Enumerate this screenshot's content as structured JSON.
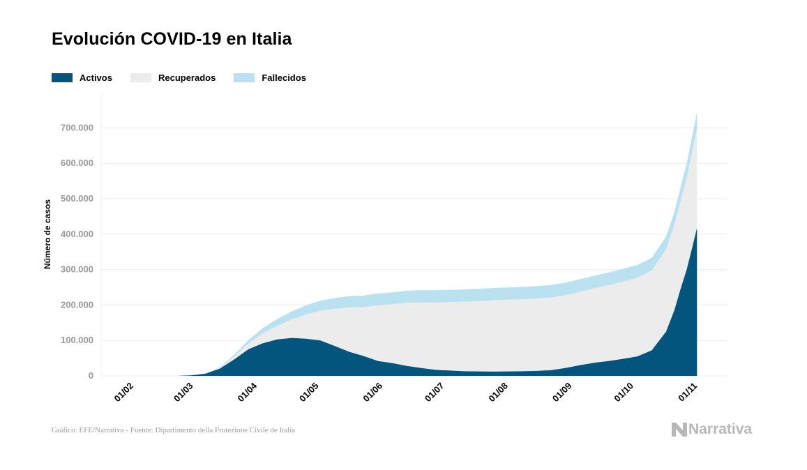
{
  "chart_data": {
    "type": "area",
    "stacked": true,
    "title": "Evolución COVID-19 en Italia",
    "ylabel": "Número de casos",
    "xlabel": "",
    "ylim": [
      0,
      780000
    ],
    "yticks": [
      0,
      100000,
      200000,
      300000,
      400000,
      500000,
      600000,
      700000
    ],
    "ytick_labels": [
      "0",
      "100.000",
      "200.000",
      "300.000",
      "400.000",
      "500.000",
      "600.000",
      "700.000"
    ],
    "xticks": [
      {
        "day": 0,
        "label": "01/02"
      },
      {
        "day": 29,
        "label": "01/03"
      },
      {
        "day": 60,
        "label": "01/04"
      },
      {
        "day": 90,
        "label": "01/05"
      },
      {
        "day": 121,
        "label": "01/06"
      },
      {
        "day": 151,
        "label": "01/07"
      },
      {
        "day": 182,
        "label": "01/08"
      },
      {
        "day": 213,
        "label": "01/09"
      },
      {
        "day": 243,
        "label": "01/10"
      },
      {
        "day": 274,
        "label": "01/11"
      }
    ],
    "legend_position": "top-left",
    "grid": true,
    "series": [
      {
        "name": "Activos",
        "color": "#04557e"
      },
      {
        "name": "Recuperados",
        "color": "#ececec"
      },
      {
        "name": "Fallecidos",
        "color": "#b9e1ef"
      }
    ],
    "dates": [
      "24/02",
      "01/03",
      "08/03",
      "15/03",
      "22/03",
      "29/03",
      "05/04",
      "12/04",
      "19/04",
      "26/04",
      "03/05",
      "10/05",
      "17/05",
      "24/05",
      "31/05",
      "07/06",
      "14/06",
      "21/06",
      "28/06",
      "05/07",
      "12/07",
      "19/07",
      "26/07",
      "02/08",
      "09/08",
      "16/08",
      "23/08",
      "30/08",
      "06/09",
      "13/09",
      "20/09",
      "27/09",
      "04/10",
      "11/10",
      "18/10",
      "22/10",
      "25/10",
      "28/10",
      "31/10",
      "02/11"
    ],
    "day_index": [
      23,
      29,
      36,
      43,
      50,
      57,
      64,
      71,
      78,
      85,
      92,
      99,
      106,
      113,
      120,
      127,
      134,
      141,
      148,
      155,
      162,
      169,
      176,
      183,
      190,
      197,
      204,
      211,
      218,
      225,
      232,
      239,
      246,
      253,
      260,
      264,
      267,
      270,
      273,
      275
    ],
    "activos": [
      200,
      1500,
      6000,
      20000,
      46000,
      75000,
      92000,
      103000,
      107000,
      105000,
      100000,
      84000,
      68000,
      56000,
      42000,
      36000,
      28000,
      22000,
      17000,
      15000,
      13000,
      12500,
      12000,
      12500,
      13000,
      14000,
      16000,
      22000,
      30000,
      37000,
      42000,
      48000,
      55000,
      72000,
      125000,
      185000,
      245000,
      300000,
      370000,
      418000
    ],
    "recuperados": [
      0,
      100,
      800,
      3000,
      8000,
      16000,
      28000,
      38000,
      52000,
      68000,
      84000,
      105000,
      125000,
      138000,
      157000,
      166000,
      178000,
      185000,
      190000,
      193000,
      196000,
      198000,
      201000,
      202000,
      203000,
      204000,
      205000,
      206000,
      207000,
      210000,
      214000,
      218000,
      222000,
      225000,
      232000,
      240000,
      248000,
      258000,
      272000,
      280000
    ],
    "fallecidos": [
      0,
      30,
      300,
      1500,
      5000,
      10000,
      15000,
      19500,
      23000,
      26000,
      28500,
      30500,
      32000,
      33000,
      33400,
      33800,
      34300,
      34600,
      34750,
      34900,
      35000,
      35050,
      35100,
      35150,
      35200,
      35230,
      35300,
      35450,
      35550,
      35650,
      35800,
      35900,
      36000,
      36200,
      36700,
      37600,
      39000,
      41000,
      44000,
      47000
    ]
  },
  "footer": {
    "source": "Gráfico: EFE/Narrativa - Fuente: Dipartimento della Protezione Civile de Italia",
    "brand": "Narrativa",
    "brand_icon": "narrativa-n-logo-icon"
  }
}
